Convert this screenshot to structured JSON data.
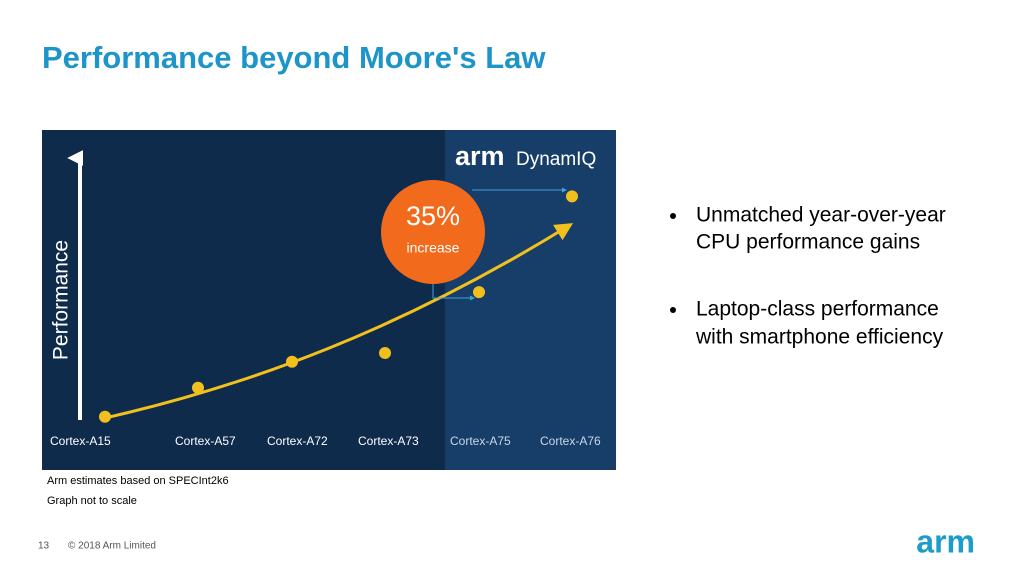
{
  "header": {
    "title": "Performance beyond Moore's Law"
  },
  "chart_data": {
    "type": "dot",
    "y_label": "Performance",
    "categories": [
      "Cortex-A15",
      "Cortex-A57",
      "Cortex-A72",
      "Cortex-A73",
      "Cortex-A75",
      "Cortex-A76"
    ],
    "values": [
      8,
      18,
      27,
      30,
      51,
      84
    ],
    "color": "#f2c01e",
    "ylim": [
      0,
      100
    ],
    "logo": {
      "brand": "arm",
      "product": "DynamIQ"
    },
    "annotation": {
      "value": "35%",
      "text": "increase"
    }
  },
  "notes": [
    "Arm estimates based on SPECInt2k6",
    "Graph not to scale"
  ],
  "bullets": [
    {
      "lines": [
        "Unmatched year-over-year",
        "CPU performance gains"
      ]
    },
    {
      "lines": [
        "Laptop-class performance",
        "with smartphone efficiency"
      ]
    }
  ],
  "footer": {
    "page": "13",
    "copyright": "© 2018 Arm Limited",
    "logo": "arm"
  }
}
